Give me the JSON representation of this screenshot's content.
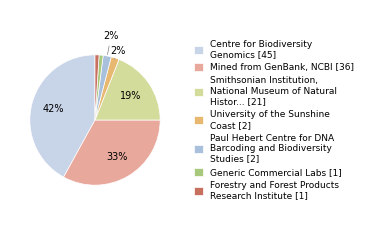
{
  "chart_data": {
    "type": "pie",
    "categories": [
      "Centre for Biodiversity\nGenomics [45]",
      "Mined from GenBank, NCBI [36]",
      "Smithsonian Institution,\nNational Museum of Natural\nHistor... [21]",
      "University of the Sunshine\nCoast [2]",
      "Paul Hebert Centre for DNA\nBarcoding and Biodiversity\nStudies [2]",
      "Generic Commercial Labs [1]",
      "Forestry and Forest Products\nResearch Institute [1]"
    ],
    "values": [
      42,
      33,
      19,
      2,
      2,
      1,
      1
    ],
    "value_labels": [
      "42%",
      "33%",
      "19%",
      "2%",
      "2%",
      null,
      null
    ],
    "colors": [
      "#c8d4e8",
      "#e8a89c",
      "#d4dc9c",
      "#e8b870",
      "#a8c0dc",
      "#a8c87c",
      "#c87060"
    ],
    "data_labels": true,
    "legend": "center left"
  }
}
